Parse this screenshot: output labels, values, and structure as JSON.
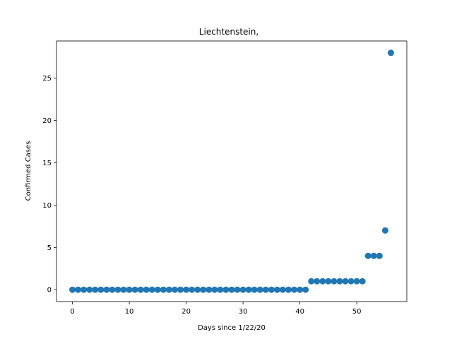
{
  "chart_data": {
    "type": "scatter",
    "title": "Liechtenstein,",
    "xlabel": "Days since 1/22/20",
    "ylabel": "Confirmed Cases",
    "xlim": [
      -2.8,
      58.8
    ],
    "ylim": [
      -1.4,
      29.4
    ],
    "xticks": [
      0,
      10,
      20,
      30,
      40,
      50
    ],
    "yticks": [
      0,
      5,
      10,
      15,
      20,
      25
    ],
    "grid": false,
    "marker_color": "#1f77b4",
    "x": [
      0,
      1,
      2,
      3,
      4,
      5,
      6,
      7,
      8,
      9,
      10,
      11,
      12,
      13,
      14,
      15,
      16,
      17,
      18,
      19,
      20,
      21,
      22,
      23,
      24,
      25,
      26,
      27,
      28,
      29,
      30,
      31,
      32,
      33,
      34,
      35,
      36,
      37,
      38,
      39,
      40,
      41,
      42,
      43,
      44,
      45,
      46,
      47,
      48,
      49,
      50,
      51,
      52,
      53,
      54,
      55,
      56
    ],
    "y": [
      0,
      0,
      0,
      0,
      0,
      0,
      0,
      0,
      0,
      0,
      0,
      0,
      0,
      0,
      0,
      0,
      0,
      0,
      0,
      0,
      0,
      0,
      0,
      0,
      0,
      0,
      0,
      0,
      0,
      0,
      0,
      0,
      0,
      0,
      0,
      0,
      0,
      0,
      0,
      0,
      0,
      0,
      1,
      1,
      1,
      1,
      1,
      1,
      1,
      1,
      1,
      1,
      4,
      4,
      4,
      7,
      28
    ]
  }
}
